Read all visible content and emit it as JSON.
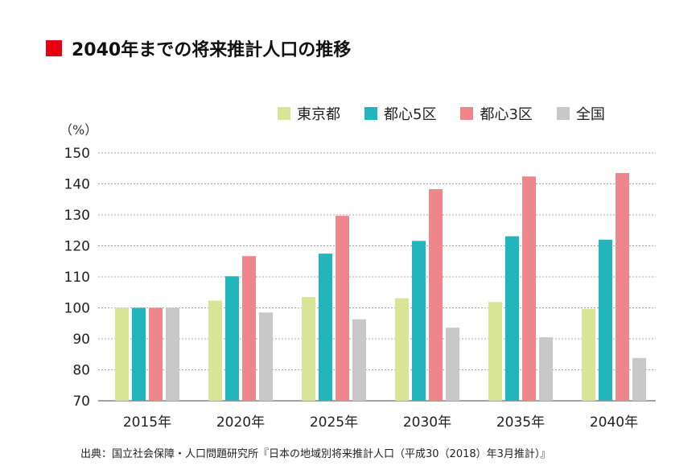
{
  "title": "2040年までの将来推計人口の推移",
  "colors": {
    "accent": "#e60012"
  },
  "source": "出典：国立社会保障・人口問題研究所『日本の地域別将来推計人口（平成30（2018）年3月推計）』",
  "chart_data": {
    "type": "bar",
    "title": "2040年までの将来推計人口の推移",
    "ylabel": "（%）",
    "xlabel": "",
    "ylim": [
      70,
      150
    ],
    "yticks": [
      70,
      80,
      90,
      100,
      110,
      120,
      130,
      140,
      150
    ],
    "grid": true,
    "legend_position": "top-right",
    "categories": [
      "2015年",
      "2020年",
      "2025年",
      "2030年",
      "2035年",
      "2040年"
    ],
    "series": [
      {
        "name": "東京都",
        "color": "#d8e597",
        "values": [
          100,
          102.3,
          103.5,
          103.1,
          101.9,
          99.6
        ]
      },
      {
        "name": "都心5区",
        "color": "#22b5bc",
        "values": [
          100,
          110.2,
          117.5,
          121.6,
          123.1,
          122.0
        ]
      },
      {
        "name": "都心3区",
        "color": "#ef868c",
        "values": [
          100,
          116.7,
          129.7,
          138.3,
          142.4,
          143.5
        ]
      },
      {
        "name": "全国",
        "color": "#c8c8c8",
        "values": [
          100,
          98.5,
          96.3,
          93.6,
          90.5,
          83.8
        ]
      }
    ]
  }
}
